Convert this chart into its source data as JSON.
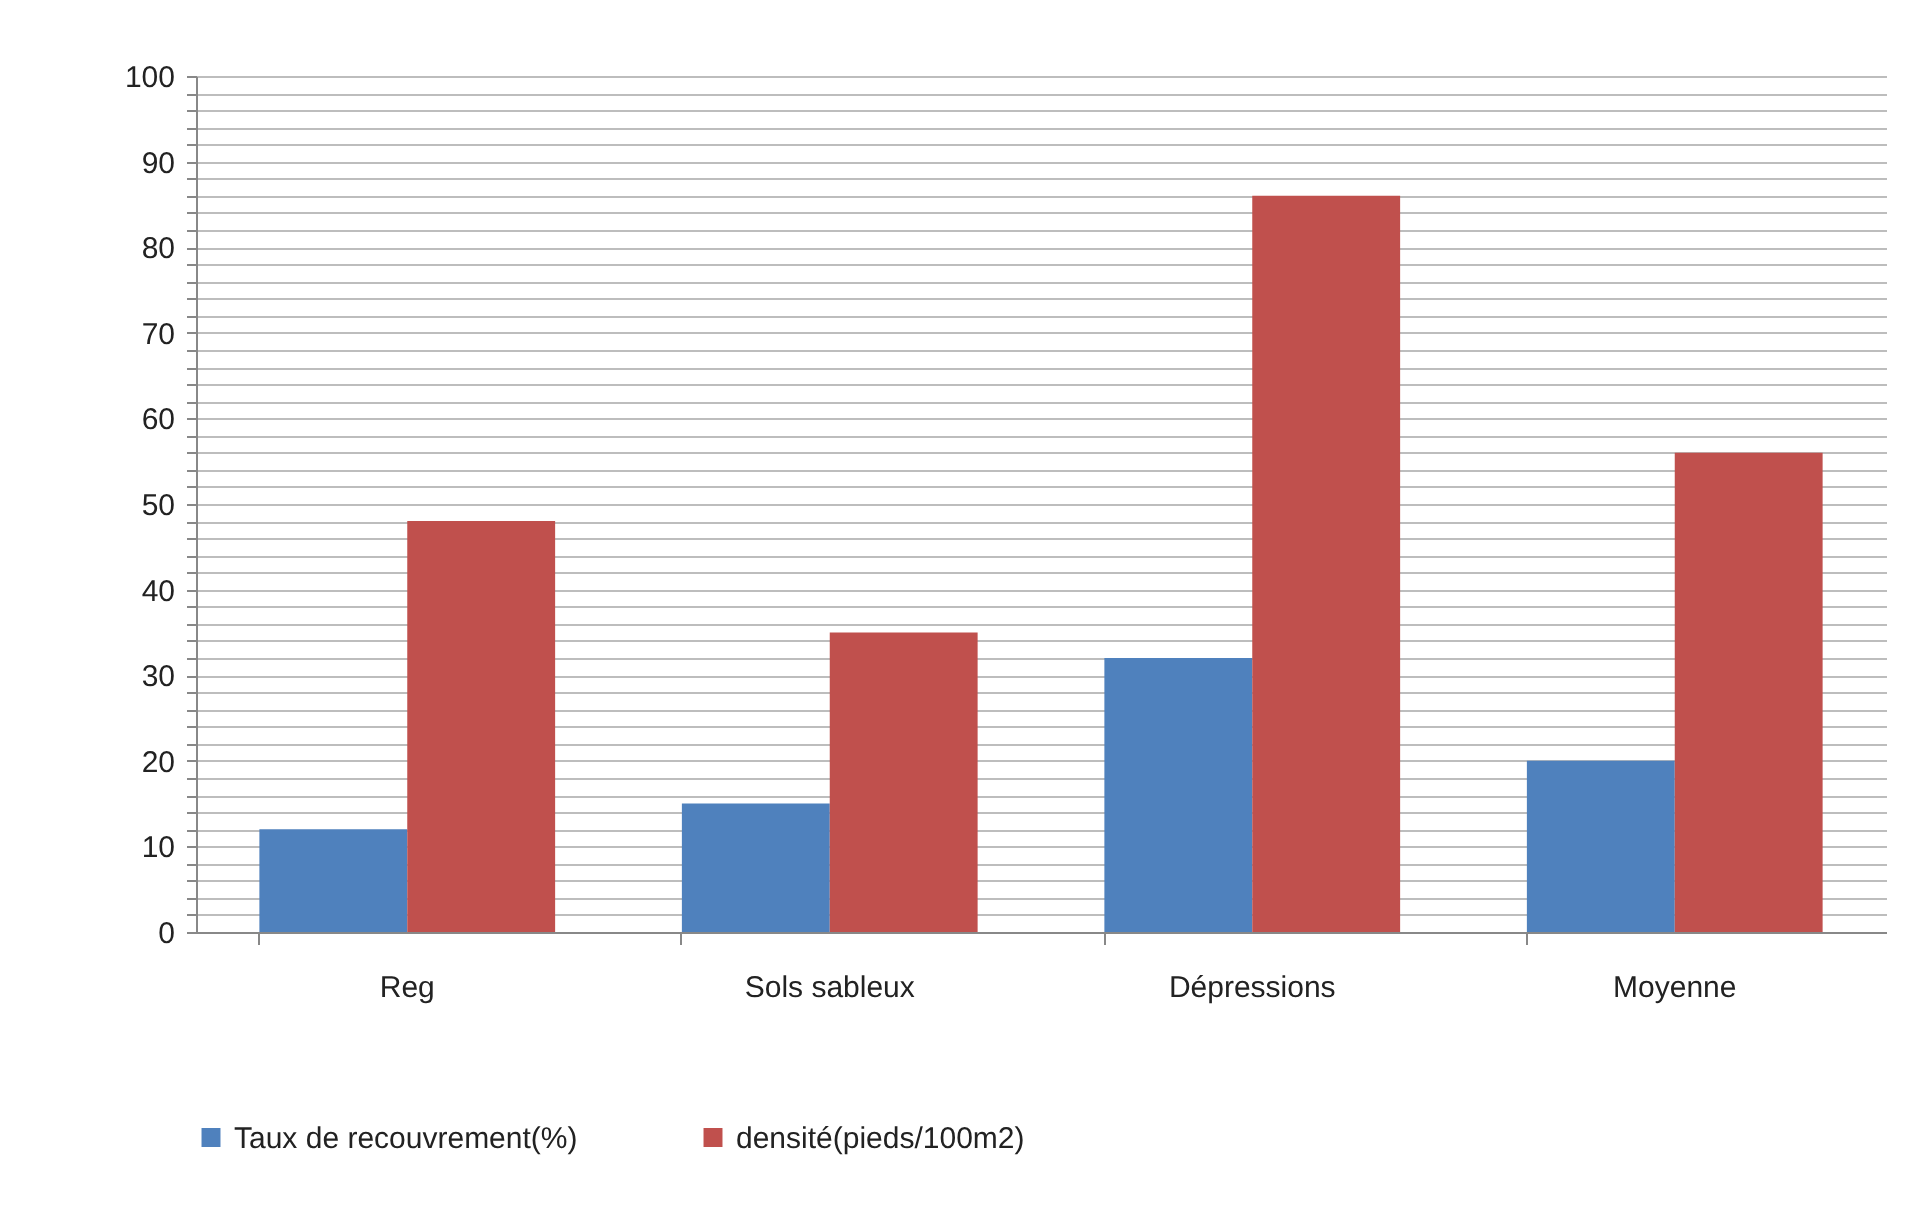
{
  "chart_data": {
    "type": "bar",
    "categories": [
      "Reg",
      "Sols sableux",
      "Dépressions",
      "Moyenne"
    ],
    "series": [
      {
        "name": "Taux de recouvrement(%)",
        "color": "#4f81bd",
        "values": [
          12,
          15,
          32,
          20
        ]
      },
      {
        "name": "densité(pieds/100m2)",
        "color": "#c0504d",
        "values": [
          48,
          35,
          86,
          56
        ]
      }
    ],
    "ylim": [
      0,
      100
    ],
    "yticks": [
      0,
      {
        "value": 2,
        "label": null
      },
      {
        "value": 4,
        "label": null
      },
      {
        "value": 6,
        "label": null
      },
      {
        "value": 8,
        "label": null
      },
      10,
      {
        "value": 12,
        "label": null
      },
      {
        "value": 14,
        "label": null
      },
      {
        "value": 16,
        "label": null
      },
      {
        "value": 18,
        "label": null
      },
      20,
      {
        "value": 22,
        "label": null
      },
      {
        "value": 24,
        "label": null
      },
      {
        "value": 26,
        "label": null
      },
      {
        "value": 28,
        "label": null
      },
      30,
      {
        "value": 32,
        "label": null
      },
      {
        "value": 34,
        "label": null
      },
      {
        "value": 36,
        "label": null
      },
      {
        "value": 38,
        "label": null
      },
      40,
      {
        "value": 42,
        "label": null
      },
      {
        "value": 44,
        "label": null
      },
      {
        "value": 46,
        "label": null
      },
      {
        "value": 48,
        "label": null
      },
      50,
      {
        "value": 52,
        "label": null
      },
      {
        "value": 54,
        "label": null
      },
      {
        "value": 56,
        "label": null
      },
      {
        "value": 58,
        "label": null
      },
      60,
      {
        "value": 62,
        "label": null
      },
      {
        "value": 64,
        "label": null
      },
      {
        "value": 66,
        "label": null
      },
      {
        "value": 68,
        "label": null
      },
      70,
      {
        "value": 72,
        "label": null
      },
      {
        "value": 74,
        "label": null
      },
      {
        "value": 76,
        "label": null
      },
      {
        "value": 78,
        "label": null
      },
      80,
      {
        "value": 82,
        "label": null
      },
      {
        "value": 84,
        "label": null
      },
      {
        "value": 86,
        "label": null
      },
      {
        "value": 88,
        "label": null
      },
      90,
      {
        "value": 92,
        "label": null
      },
      {
        "value": 94,
        "label": null
      },
      {
        "value": 96,
        "label": null
      },
      {
        "value": 98,
        "label": null
      },
      100
    ],
    "grid": "y",
    "legend": "bottom"
  }
}
